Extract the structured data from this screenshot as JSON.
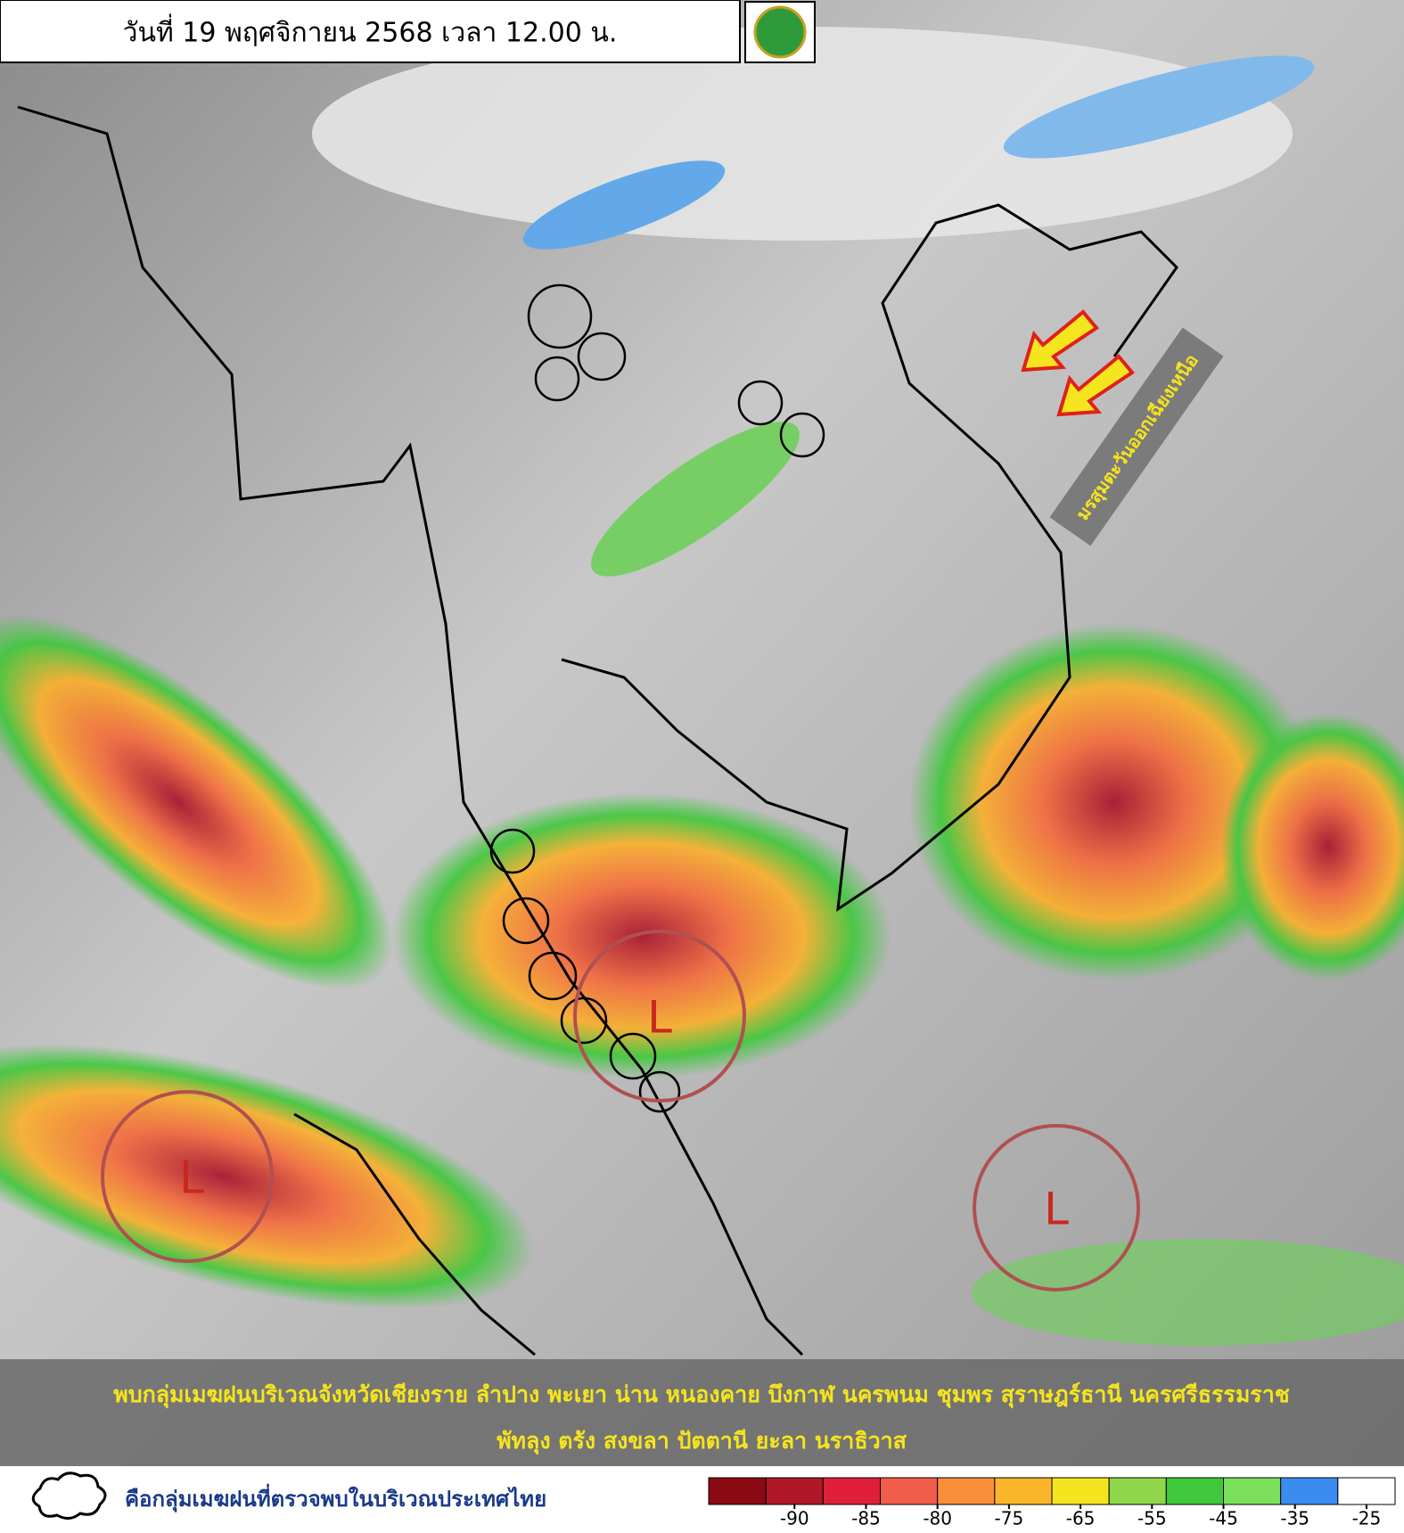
{
  "header": {
    "title": "วันที่ 19 พฤศจิกายน 2568 เวลา 12.00 น."
  },
  "annotation": "มรสุมตะวันออกเฉียงเหนือ",
  "lows": [
    "L",
    "L",
    "L"
  ],
  "caption": [
    "พบกลุ่มเมฆฝนบริเวณจังหวัดเชียงราย ลำปาง พะเยา น่าน หนองคาย บึงกาฬ นครพนม ชุมพร สุราษฎร์ธานี นครศรีธรรมราช",
    "พัทลุง ตรัง สงขลา ปัตตานี ยะลา นราธิวาส"
  ],
  "legend": {
    "label": "คือกลุ่มเมฆฝนที่ตรวจพบในบริเวณประเทศไทย"
  },
  "colorbar": {
    "ticks": [
      -90,
      -85,
      -80,
      -75,
      -65,
      -55,
      -45,
      -35,
      -25
    ],
    "colors": [
      "#8b0a14",
      "#b0182a",
      "#e0203a",
      "#f25c4a",
      "#fb8e3a",
      "#fbb52a",
      "#f5e51e",
      "#8fd64a",
      "#3ec83a",
      "#7ae05a",
      "#3a8cf0",
      "#ffffff"
    ]
  }
}
